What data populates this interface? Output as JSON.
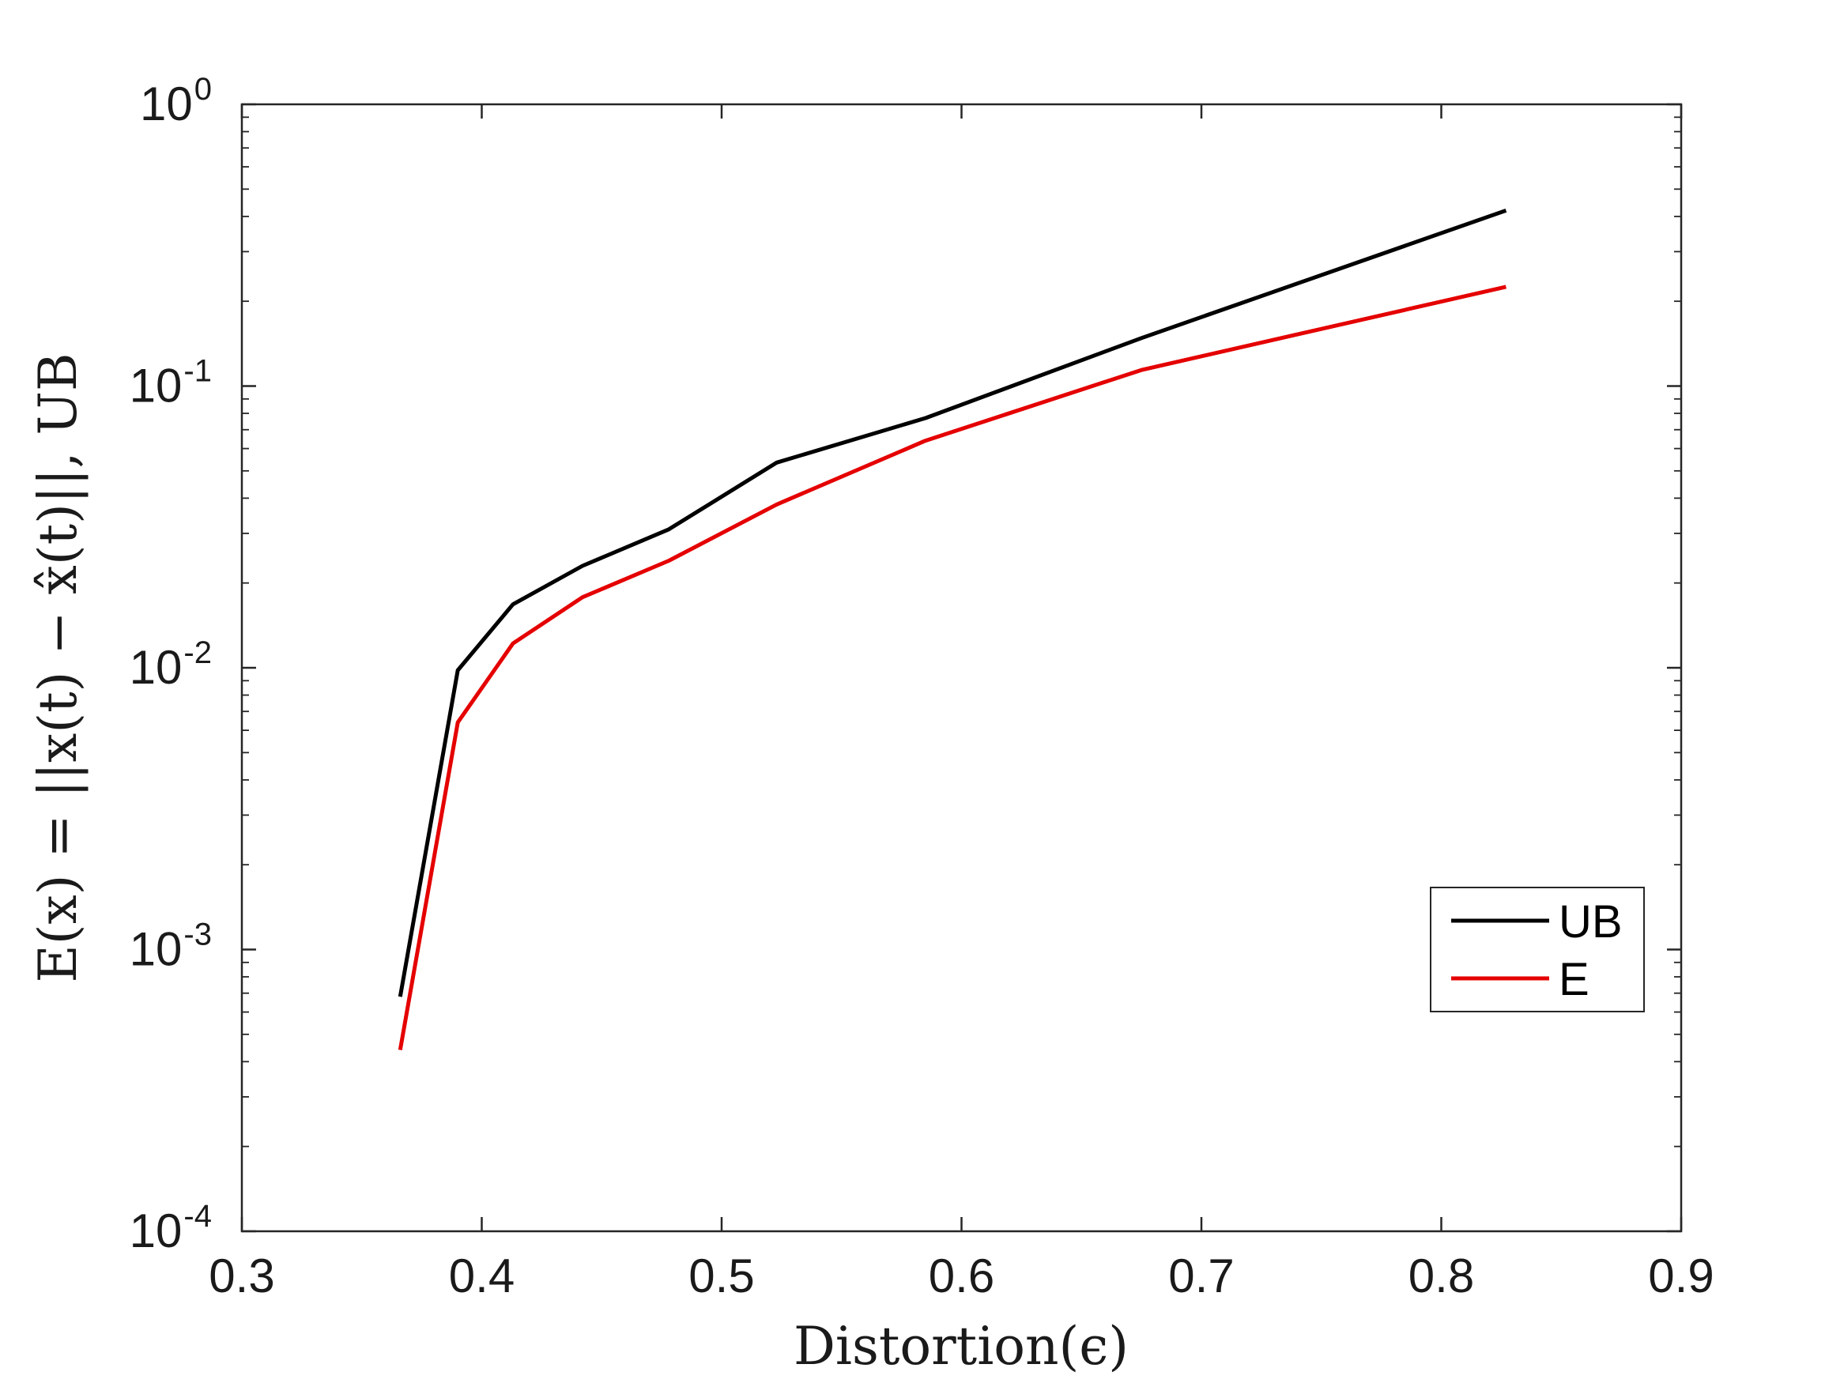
{
  "chart_data": {
    "type": "line",
    "xlabel": "Distortion(ϵ)",
    "ylabel": "E(x) = ||x(t) − x̂(t)||, UB",
    "xlim": [
      0.3,
      0.9
    ],
    "ylim": [
      0.0001,
      1
    ],
    "yscale": "log",
    "grid": false,
    "legend_position": "lower-right",
    "x_ticks": [
      {
        "value": 0.3,
        "label": "0.3"
      },
      {
        "value": 0.4,
        "label": "0.4"
      },
      {
        "value": 0.5,
        "label": "0.5"
      },
      {
        "value": 0.6,
        "label": "0.6"
      },
      {
        "value": 0.7,
        "label": "0.7"
      },
      {
        "value": 0.8,
        "label": "0.8"
      },
      {
        "value": 0.9,
        "label": "0.9"
      }
    ],
    "y_ticks": [
      {
        "value": 1,
        "base": "10",
        "exp": "0"
      },
      {
        "value": 0.1,
        "base": "10",
        "exp": "-1"
      },
      {
        "value": 0.01,
        "base": "10",
        "exp": "-2"
      },
      {
        "value": 0.001,
        "base": "10",
        "exp": "-3"
      },
      {
        "value": 0.0001,
        "base": "10",
        "exp": "-4"
      }
    ],
    "series": [
      {
        "name": "UB",
        "color": "#000000",
        "x": [
          0.366,
          0.39,
          0.413,
          0.442,
          0.478,
          0.523,
          0.585,
          0.675,
          0.827
        ],
        "y": [
          0.00068,
          0.0098,
          0.0168,
          0.023,
          0.031,
          0.0535,
          0.077,
          0.148,
          0.42
        ]
      },
      {
        "name": "E",
        "color": "#e50000",
        "x": [
          0.366,
          0.39,
          0.413,
          0.442,
          0.478,
          0.523,
          0.585,
          0.675,
          0.827
        ],
        "y": [
          0.00044,
          0.0064,
          0.0122,
          0.0178,
          0.024,
          0.038,
          0.064,
          0.114,
          0.225
        ]
      }
    ]
  }
}
